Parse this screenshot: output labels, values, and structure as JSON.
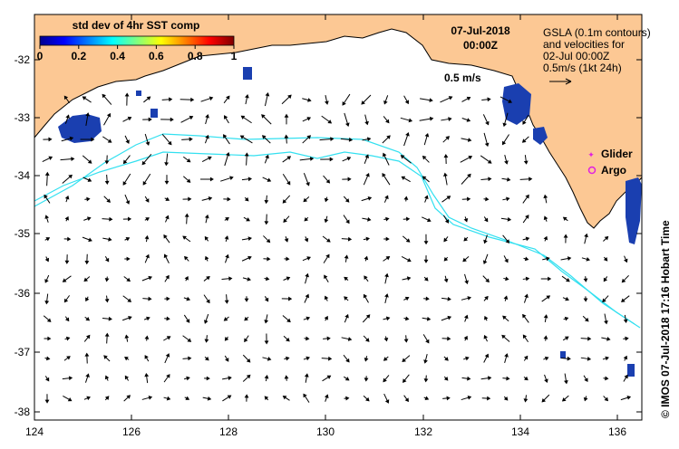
{
  "colorbar": {
    "title": "std dev of 4hr SST comp",
    "ticks": [
      "0",
      "0.2",
      "0.4",
      "0.6",
      "0.8",
      "1"
    ]
  },
  "header": {
    "date": "07-Jul-2018",
    "time": "00:00Z"
  },
  "info": {
    "line1": "GSLA (0.1m contours)",
    "line2": "and velocities for",
    "line3": "02-Jul 00:00Z",
    "line4": "0.5m/s (1kt 24h)"
  },
  "scale_label": "0.5 m/s",
  "legend": {
    "glider": "Glider",
    "argo": "Argo"
  },
  "credit": "© IMOS 07-Jul-2018 17:16 Hobart Time",
  "axes": {
    "x_ticks": [
      "124",
      "126",
      "128",
      "130",
      "132",
      "134",
      "136"
    ],
    "y_ticks": [
      "-32",
      "-33",
      "-34",
      "-35",
      "-36",
      "-37",
      "-38"
    ]
  },
  "colors": {
    "land": "#fcc894",
    "contour": "#33e0f0",
    "glider": "#e020e0",
    "argo": "#e020e0"
  }
}
